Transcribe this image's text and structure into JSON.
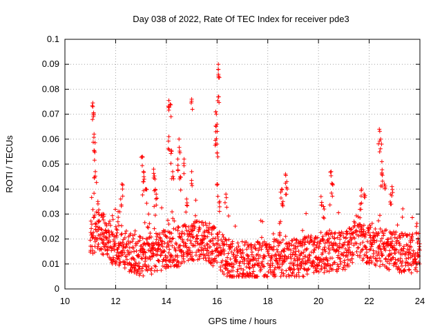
{
  "chart_data": {
    "type": "scatter",
    "title": "Day 038 of 2022, Rate Of TEC Index for receiver pde3",
    "xlabel": "GPS time / hours",
    "ylabel": "ROTI / TECUs",
    "xlim": [
      10,
      24
    ],
    "ylim": [
      0,
      0.1
    ],
    "xticks": [
      10,
      12,
      14,
      16,
      18,
      20,
      22,
      24
    ],
    "yticks": [
      0,
      0.01,
      0.02,
      0.03,
      0.04,
      0.05,
      0.06,
      0.07,
      0.08,
      0.09,
      0.1
    ],
    "grid": true,
    "marker": "+",
    "marker_color": "#ff0000",
    "series": [
      {
        "name": "ROTI",
        "baseline": [
          [
            11.0,
            0.02
          ],
          [
            11.3,
            0.024
          ],
          [
            11.6,
            0.02
          ],
          [
            12.0,
            0.017
          ],
          [
            12.5,
            0.015
          ],
          [
            13.0,
            0.013
          ],
          [
            13.5,
            0.014
          ],
          [
            14.0,
            0.016
          ],
          [
            14.5,
            0.017
          ],
          [
            15.0,
            0.019
          ],
          [
            15.5,
            0.02
          ],
          [
            16.0,
            0.016
          ],
          [
            16.5,
            0.012
          ],
          [
            17.0,
            0.011
          ],
          [
            17.5,
            0.011
          ],
          [
            18.0,
            0.012
          ],
          [
            18.5,
            0.012
          ],
          [
            19.0,
            0.012
          ],
          [
            19.5,
            0.013
          ],
          [
            20.0,
            0.014
          ],
          [
            20.5,
            0.015
          ],
          [
            21.0,
            0.015
          ],
          [
            21.5,
            0.02
          ],
          [
            22.0,
            0.018
          ],
          [
            22.5,
            0.016
          ],
          [
            23.0,
            0.015
          ],
          [
            23.5,
            0.014
          ],
          [
            24.0,
            0.015
          ]
        ],
        "peaks": [
          [
            11.1,
            0.0745
          ],
          [
            11.1,
            0.073
          ],
          [
            11.15,
            0.062
          ],
          [
            11.15,
            0.0555
          ],
          [
            11.2,
            0.047
          ],
          [
            11.3,
            0.035
          ],
          [
            11.5,
            0.03
          ],
          [
            12.1,
            0.031
          ],
          [
            12.2,
            0.036
          ],
          [
            12.25,
            0.042
          ],
          [
            13.05,
            0.053
          ],
          [
            13.1,
            0.047
          ],
          [
            13.1,
            0.043
          ],
          [
            13.2,
            0.04
          ],
          [
            13.3,
            0.03
          ],
          [
            13.5,
            0.048
          ],
          [
            13.55,
            0.044
          ],
          [
            13.6,
            0.038
          ],
          [
            14.1,
            0.0755
          ],
          [
            14.15,
            0.074
          ],
          [
            14.1,
            0.061
          ],
          [
            14.2,
            0.0555
          ],
          [
            14.25,
            0.047
          ],
          [
            14.5,
            0.06
          ],
          [
            14.45,
            0.052
          ],
          [
            14.55,
            0.045
          ],
          [
            14.7,
            0.052
          ],
          [
            14.8,
            0.036
          ],
          [
            15.0,
            0.076
          ],
          [
            15.0,
            0.047
          ],
          [
            15.95,
            0.071
          ],
          [
            15.95,
            0.063
          ],
          [
            16.05,
            0.09
          ],
          [
            16.05,
            0.088
          ],
          [
            16.05,
            0.077
          ],
          [
            16.0,
            0.066
          ],
          [
            16.0,
            0.058
          ],
          [
            16.0,
            0.042
          ],
          [
            16.1,
            0.035
          ],
          [
            16.35,
            0.038
          ],
          [
            18.55,
            0.04
          ],
          [
            18.7,
            0.046
          ],
          [
            18.75,
            0.043
          ],
          [
            18.6,
            0.035
          ],
          [
            18.5,
            0.027
          ],
          [
            20.1,
            0.037
          ],
          [
            20.2,
            0.033
          ],
          [
            20.5,
            0.047
          ],
          [
            20.55,
            0.042
          ],
          [
            21.7,
            0.04
          ],
          [
            21.8,
            0.038
          ],
          [
            21.65,
            0.034
          ],
          [
            22.4,
            0.064
          ],
          [
            22.45,
            0.06
          ],
          [
            22.5,
            0.051
          ],
          [
            22.5,
            0.046
          ],
          [
            22.6,
            0.042
          ],
          [
            22.9,
            0.041
          ],
          [
            22.85,
            0.038
          ]
        ]
      }
    ]
  }
}
